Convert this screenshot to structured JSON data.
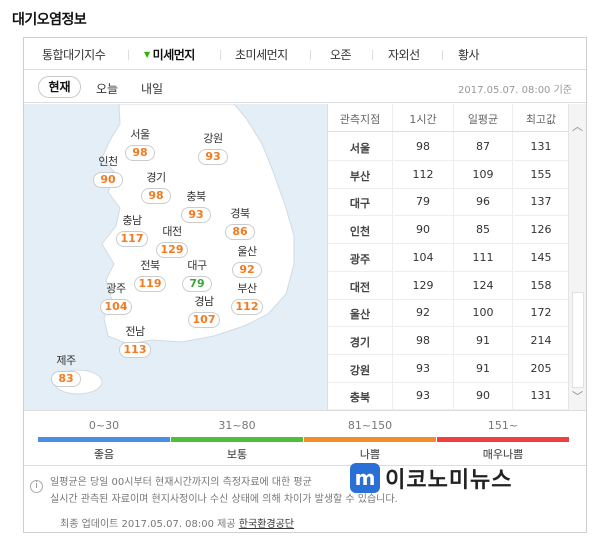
{
  "page": {
    "title": "대기오염정보"
  },
  "tabs": [
    {
      "label": "통합대기지수"
    },
    {
      "label": "미세먼지",
      "active": true
    },
    {
      "label": "초미세먼지"
    },
    {
      "label": "오존"
    },
    {
      "label": "자외선"
    },
    {
      "label": "황사"
    }
  ],
  "subtabs": {
    "now": "현재",
    "today": "오늘",
    "tomorrow": "내일",
    "timestamp": "2017.05.07. 08:00 기준"
  },
  "regions": [
    {
      "name": "서울",
      "value": "98",
      "level": "bad"
    },
    {
      "name": "강원",
      "value": "93",
      "level": "bad"
    },
    {
      "name": "인천",
      "value": "90",
      "level": "bad"
    },
    {
      "name": "경기",
      "value": "98",
      "level": "bad"
    },
    {
      "name": "충북",
      "value": "93",
      "level": "bad"
    },
    {
      "name": "충남",
      "value": "117",
      "level": "bad"
    },
    {
      "name": "대전",
      "value": "129",
      "level": "bad"
    },
    {
      "name": "경북",
      "value": "86",
      "level": "bad"
    },
    {
      "name": "울산",
      "value": "92",
      "level": "bad"
    },
    {
      "name": "전북",
      "value": "119",
      "level": "bad"
    },
    {
      "name": "대구",
      "value": "79",
      "level": "normal"
    },
    {
      "name": "광주",
      "value": "104",
      "level": "bad"
    },
    {
      "name": "부산",
      "value": "112",
      "level": "bad"
    },
    {
      "name": "경남",
      "value": "107",
      "level": "bad"
    },
    {
      "name": "전남",
      "value": "113",
      "level": "bad"
    },
    {
      "name": "제주",
      "value": "83",
      "level": "bad"
    }
  ],
  "table": {
    "headers": [
      "관측지점",
      "1시간",
      "일평균",
      "최고값"
    ],
    "rows": [
      [
        "서울",
        "98",
        "87",
        "131"
      ],
      [
        "부산",
        "112",
        "109",
        "155"
      ],
      [
        "대구",
        "79",
        "96",
        "137"
      ],
      [
        "인천",
        "90",
        "85",
        "126"
      ],
      [
        "광주",
        "104",
        "111",
        "145"
      ],
      [
        "대전",
        "129",
        "124",
        "158"
      ],
      [
        "울산",
        "92",
        "100",
        "172"
      ],
      [
        "경기",
        "98",
        "91",
        "214"
      ],
      [
        "강원",
        "93",
        "91",
        "205"
      ],
      [
        "충북",
        "93",
        "90",
        "131"
      ]
    ]
  },
  "legend": [
    {
      "range": "0~30",
      "label": "좋음",
      "color": "#4a8ee6"
    },
    {
      "range": "31~80",
      "label": "보통",
      "color": "#4fbf3a"
    },
    {
      "range": "81~150",
      "label": "나쁨",
      "color": "#f58b2a"
    },
    {
      "range": "151~",
      "label": "매우나쁨",
      "color": "#ee4040"
    }
  ],
  "note": {
    "line1": "일평균은 당일 00시부터 현재시간까지의 측정자료에 대한 평균",
    "line2": "실시간 관측된 자료이며 현지사정이나 수신 상태에 의해 차이가 발생할 수 있습니다.",
    "footer_prefix": "최종 업데이트 2017.05.07. 08:00 제공",
    "provider": "한국환경공단"
  },
  "watermark": {
    "logo": "m",
    "text": "이코노미뉴스"
  },
  "colors": {
    "bad": "#f27b21",
    "normal": "#3da73a",
    "map_sea": "#e3eef6",
    "map_land": "#ffffff"
  }
}
